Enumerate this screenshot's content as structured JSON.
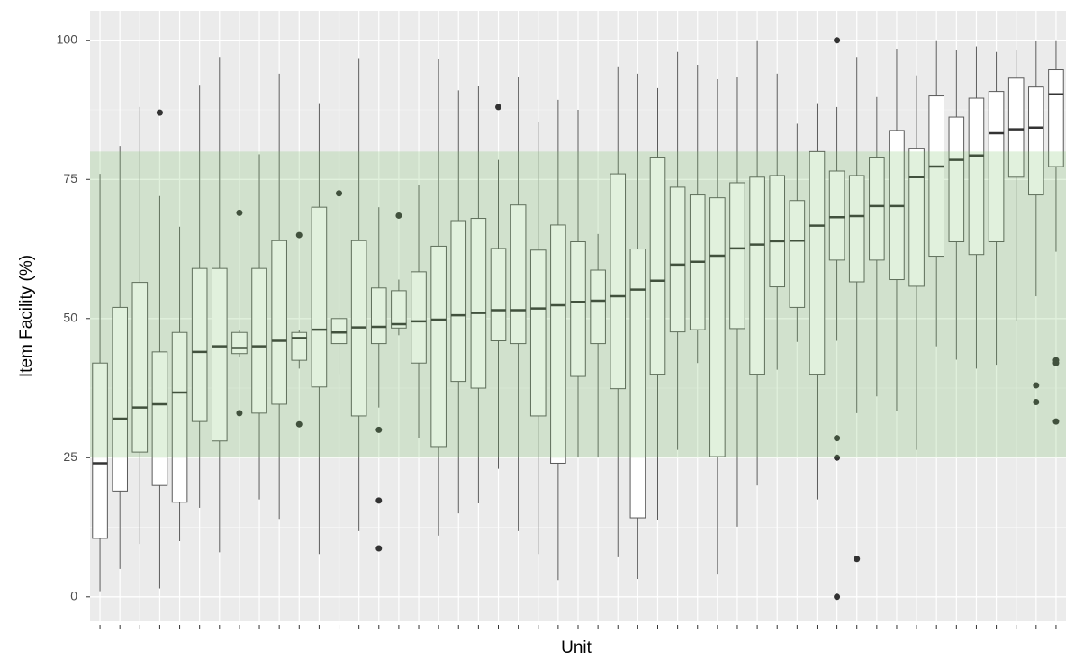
{
  "chart_data": {
    "type": "boxplot",
    "x_label": "Unit",
    "y_label": "Item Facility (%)",
    "categories": [
      null,
      null,
      null,
      null,
      null,
      null,
      null,
      null,
      null,
      null,
      null,
      null,
      null,
      null,
      null,
      null,
      null,
      null,
      null,
      null,
      null,
      null,
      null,
      null,
      null,
      null,
      null,
      null,
      null,
      null,
      null,
      null,
      null,
      null,
      null,
      null,
      null,
      null,
      null,
      null,
      null,
      null,
      null,
      null,
      null,
      null,
      null,
      null,
      null
    ],
    "boxes": [
      {
        "low": 1,
        "q1": 10.5,
        "median": 24,
        "q3": 42,
        "high": 76
      },
      {
        "low": 5,
        "q1": 19,
        "median": 32,
        "q3": 52,
        "high": 81
      },
      {
        "low": 9.5,
        "q1": 26,
        "median": 34,
        "q3": 56.5,
        "high": 88
      },
      {
        "low": 1.5,
        "q1": 20,
        "median": 34.6,
        "q3": 44,
        "high": 72,
        "outliers": [
          87
        ]
      },
      {
        "low": 10,
        "q1": 17,
        "median": 36.7,
        "q3": 47.5,
        "high": 66.5
      },
      {
        "low": 16,
        "q1": 31.5,
        "median": 44,
        "q3": 59,
        "high": 92
      },
      {
        "low": 8,
        "q1": 28,
        "median": 45,
        "q3": 59,
        "high": 97
      },
      {
        "low": 43,
        "q1": 43.7,
        "median": 44.7,
        "q3": 47.5,
        "high": 48,
        "outliers": [
          69,
          33
        ]
      },
      {
        "low": 17.5,
        "q1": 33,
        "median": 45,
        "q3": 59,
        "high": 79.5
      },
      {
        "low": 14,
        "q1": 34.6,
        "median": 46,
        "q3": 64,
        "high": 94
      },
      {
        "low": 41,
        "q1": 42.5,
        "median": 46.5,
        "q3": 47.5,
        "high": 48,
        "outliers": [
          65,
          31
        ]
      },
      {
        "low": 7.7,
        "q1": 37.7,
        "median": 48,
        "q3": 70,
        "high": 88.7
      },
      {
        "low": 40,
        "q1": 45.5,
        "median": 47.5,
        "q3": 50,
        "high": 51,
        "outliers": [
          72.5
        ]
      },
      {
        "low": 11.8,
        "q1": 32.5,
        "median": 48.4,
        "q3": 64,
        "high": 96.8
      },
      {
        "low": 34,
        "q1": 45.5,
        "median": 48.5,
        "q3": 55.5,
        "high": 70,
        "outliers": [
          30,
          17.3,
          8.7
        ]
      },
      {
        "low": 47,
        "q1": 48.3,
        "median": 49,
        "q3": 55,
        "high": 57,
        "outliers": [
          68.5
        ]
      },
      {
        "low": 28.5,
        "q1": 42,
        "median": 49.5,
        "q3": 58.4,
        "high": 74
      },
      {
        "low": 11,
        "q1": 27,
        "median": 49.8,
        "q3": 63,
        "high": 96.6
      },
      {
        "low": 15,
        "q1": 38.7,
        "median": 50.6,
        "q3": 67.6,
        "high": 91
      },
      {
        "low": 16.8,
        "q1": 37.5,
        "median": 51,
        "q3": 68,
        "high": 91.7
      },
      {
        "low": 23,
        "q1": 46,
        "median": 51.5,
        "q3": 62.6,
        "high": 78.5,
        "outliers": [
          88
        ]
      },
      {
        "low": 11.8,
        "q1": 45.5,
        "median": 51.5,
        "q3": 70.4,
        "high": 93.4
      },
      {
        "low": 7.7,
        "q1": 32.5,
        "median": 51.8,
        "q3": 62.3,
        "high": 85.4
      },
      {
        "low": 3,
        "q1": 24,
        "median": 52.4,
        "q3": 66.8,
        "high": 89.3
      },
      {
        "low": 25.2,
        "q1": 39.6,
        "median": 53,
        "q3": 63.8,
        "high": 87.5
      },
      {
        "low": 25.2,
        "q1": 45.5,
        "median": 53.2,
        "q3": 58.7,
        "high": 65.2
      },
      {
        "low": 7.1,
        "q1": 37.4,
        "median": 54,
        "q3": 76,
        "high": 95.3
      },
      {
        "low": 3.2,
        "q1": 14.2,
        "median": 55.2,
        "q3": 62.5,
        "high": 94
      },
      {
        "low": 13.8,
        "q1": 40,
        "median": 56.8,
        "q3": 79,
        "high": 91.4
      },
      {
        "low": 26.4,
        "q1": 47.6,
        "median": 59.7,
        "q3": 73.6,
        "high": 97.9
      },
      {
        "low": 42,
        "q1": 48,
        "median": 60.2,
        "q3": 72.2,
        "high": 95.6
      },
      {
        "low": 4,
        "q1": 25.2,
        "median": 61.3,
        "q3": 71.7,
        "high": 93
      },
      {
        "low": 12.6,
        "q1": 48.2,
        "median": 62.6,
        "q3": 74.4,
        "high": 93.4
      },
      {
        "low": 20,
        "q1": 40,
        "median": 63.3,
        "q3": 75.4,
        "high": 100
      },
      {
        "low": 40.8,
        "q1": 55.7,
        "median": 63.9,
        "q3": 75.7,
        "high": 94
      },
      {
        "low": 45.8,
        "q1": 52,
        "median": 64,
        "q3": 71.2,
        "high": 85
      },
      {
        "low": 17.5,
        "q1": 40,
        "median": 66.7,
        "q3": 80,
        "high": 88.7
      },
      {
        "low": 46,
        "q1": 60.5,
        "median": 68.2,
        "q3": 76.5,
        "high": 88,
        "outliers": [
          100,
          28.5,
          25,
          0
        ]
      },
      {
        "low": 33,
        "q1": 56.6,
        "median": 68.4,
        "q3": 75.7,
        "high": 97,
        "outliers": [
          6.8
        ]
      },
      {
        "low": 36,
        "q1": 60.5,
        "median": 70.2,
        "q3": 79,
        "high": 89.8
      },
      {
        "low": 33.3,
        "q1": 57,
        "median": 70.2,
        "q3": 83.8,
        "high": 98.5
      },
      {
        "low": 26.4,
        "q1": 55.8,
        "median": 75.4,
        "q3": 80.6,
        "high": 93.7
      },
      {
        "low": 45,
        "q1": 61.2,
        "median": 77.3,
        "q3": 90,
        "high": 100
      },
      {
        "low": 42.6,
        "q1": 63.8,
        "median": 78.5,
        "q3": 86.2,
        "high": 98.2
      },
      {
        "low": 41,
        "q1": 61.5,
        "median": 79.3,
        "q3": 89.6,
        "high": 98.9
      },
      {
        "low": 41.7,
        "q1": 63.8,
        "median": 83.3,
        "q3": 90.8,
        "high": 97.9
      },
      {
        "low": 49.5,
        "q1": 75.4,
        "median": 84,
        "q3": 93.2,
        "high": 98.2
      },
      {
        "low": 54,
        "q1": 72.2,
        "median": 84.3,
        "q3": 91.6,
        "high": 99.8,
        "outliers": [
          38,
          35
        ]
      },
      {
        "low": 62,
        "q1": 77.3,
        "median": 90.3,
        "q3": 94.7,
        "high": 100,
        "outliers": [
          42.5,
          42,
          31.5
        ]
      }
    ],
    "ylim": [
      -4.4,
      105.3
    ],
    "yticks": [
      0,
      25,
      50,
      75,
      100
    ],
    "minor_yticks": [
      12.5,
      37.5,
      62.5,
      87.5
    ],
    "grid": true,
    "highlight_band": [
      25,
      80
    ],
    "band_color": "rgba(120,190,100,0.22)",
    "box_fill": "#ffffff",
    "box_color": "#595959",
    "outlier_color": "#333333",
    "background": "#ebebeb"
  }
}
